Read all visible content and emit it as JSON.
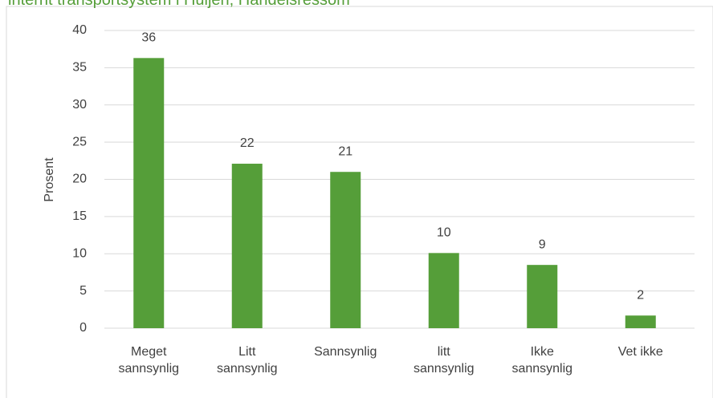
{
  "chart_data": {
    "type": "bar",
    "title": "internt transportsystem i Huljen, Handelsressom",
    "ylabel": "Prosent",
    "categories": [
      "Meget sannsynlig",
      "Litt sannsynlig",
      "Sannsynlig",
      "litt sannsynlig",
      "Ikke sannsynlig",
      "Vet ikke"
    ],
    "values": [
      36.3,
      22.1,
      21.0,
      10.1,
      8.5,
      1.7
    ],
    "value_labels": [
      "36",
      "22",
      "21",
      "10",
      "9",
      "2"
    ],
    "color": "#559e39",
    "ylim": [
      0,
      40
    ],
    "yticks": [
      0,
      5,
      10,
      15,
      20,
      25,
      30,
      35,
      40
    ],
    "grid": true
  }
}
